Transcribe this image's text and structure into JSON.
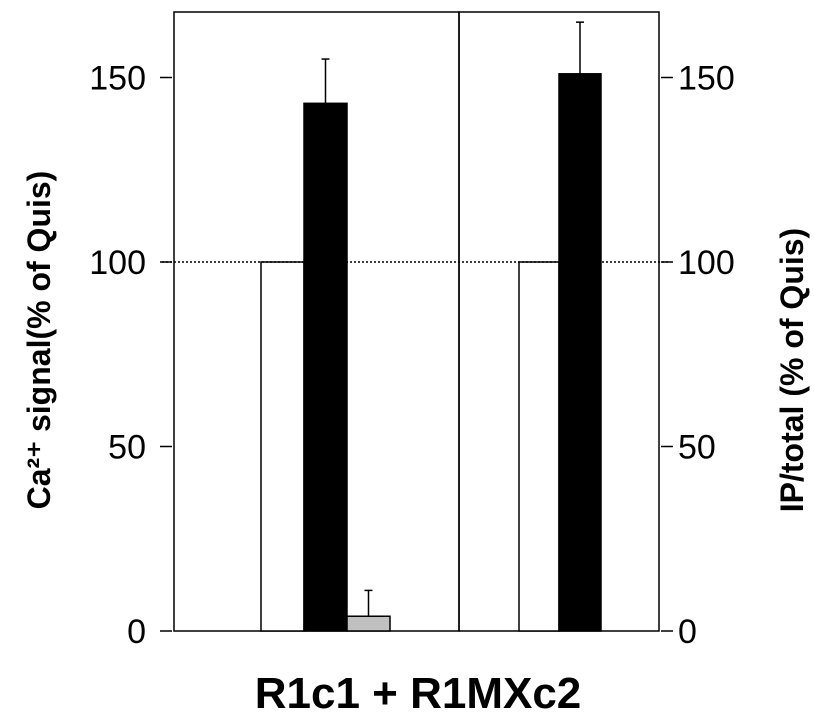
{
  "chart_data": {
    "type": "bar",
    "xlabel": "R1c1 + R1MXc2",
    "ylabel_left": "Ca²⁺ signal(% of Quis)",
    "ylabel_right": "IP/total (% of Quis)",
    "ylim": [
      0,
      170
    ],
    "yticks": [
      0,
      50,
      100,
      150
    ],
    "reference_line": 100,
    "panels": [
      {
        "axis": "left",
        "bars": [
          {
            "value": 100,
            "error": 0,
            "fill": "white"
          },
          {
            "value": 143,
            "error": 12,
            "fill": "black"
          },
          {
            "value": 4,
            "error": 7,
            "fill": "gray"
          }
        ]
      },
      {
        "axis": "right",
        "bars": [
          {
            "value": 100,
            "error": 0,
            "fill": "white"
          },
          {
            "value": 151,
            "error": 14,
            "fill": "black"
          }
        ]
      }
    ],
    "colors": {
      "white": "#ffffff",
      "black": "#000000",
      "gray": "#c0c0c0"
    }
  }
}
